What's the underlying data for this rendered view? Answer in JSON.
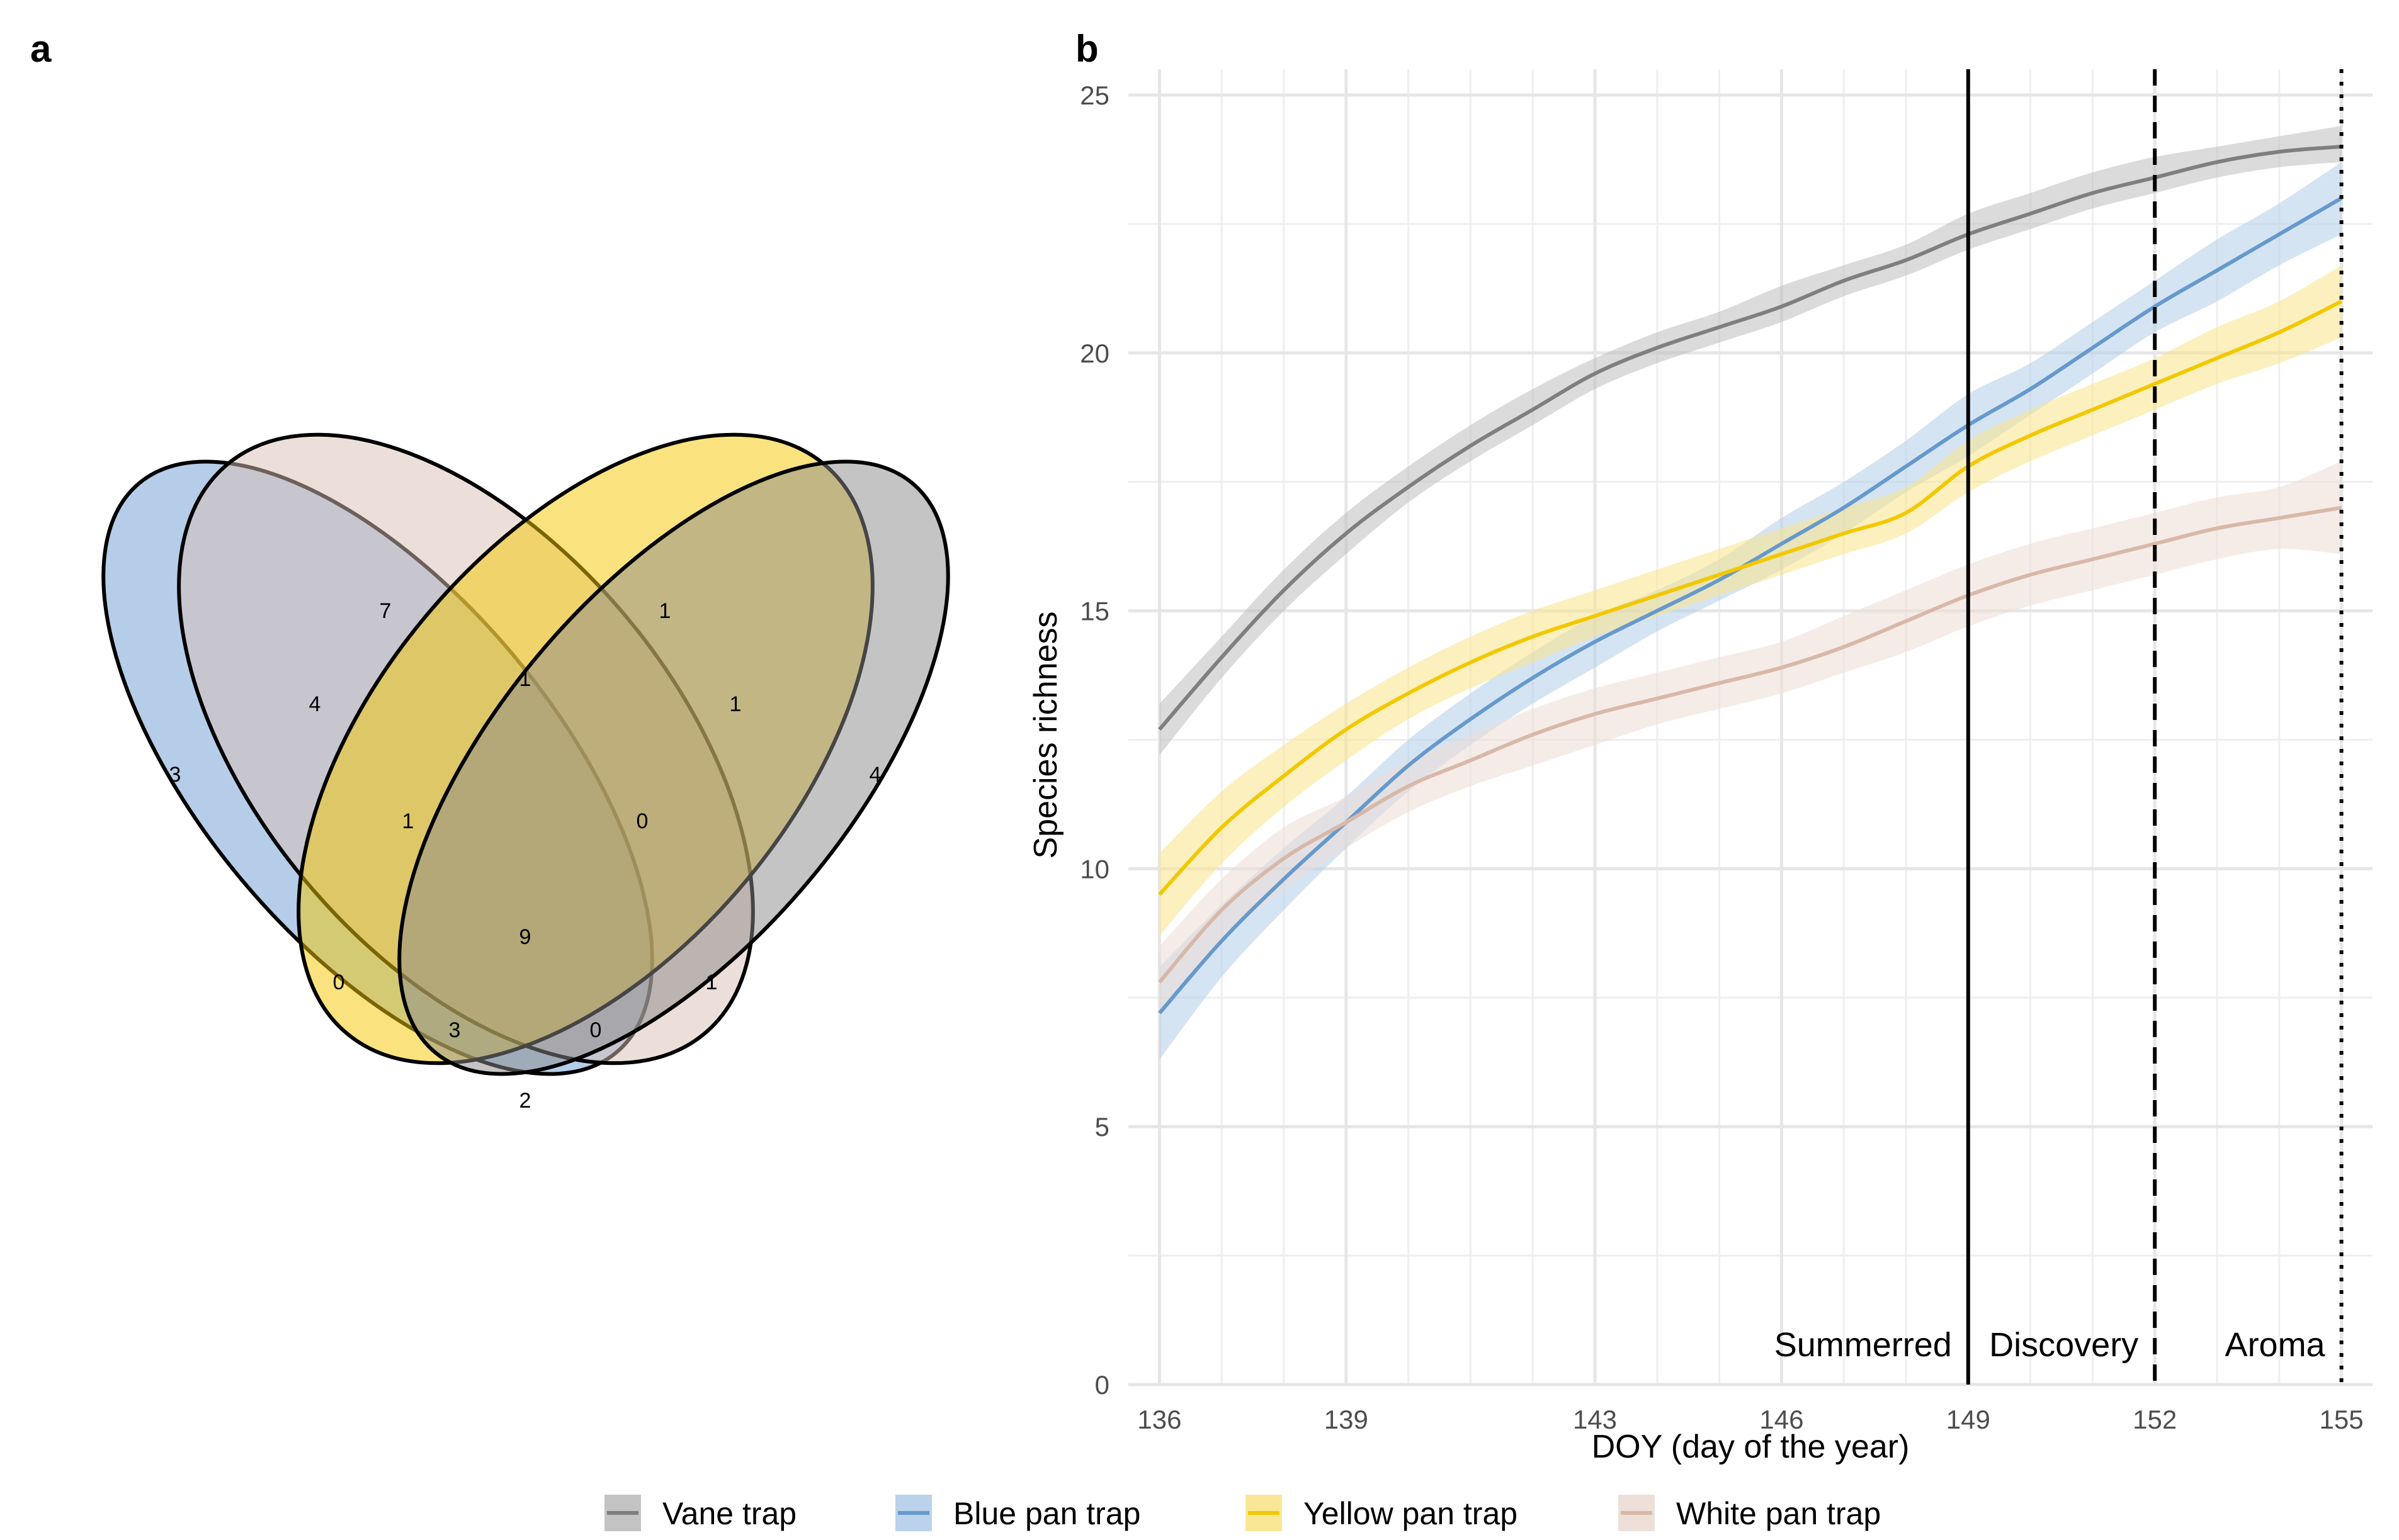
{
  "panels": {
    "a": "a",
    "b": "b"
  },
  "venn": {
    "sets": [
      {
        "name": "Blue pan trap",
        "color": "#6c9bd1"
      },
      {
        "name": "White pan trap",
        "color": "#d9bfb4"
      },
      {
        "name": "Yellow pan trap",
        "color": "#f5c800"
      },
      {
        "name": "Vane trap",
        "color": "#8a8a8a"
      }
    ],
    "counts": {
      "blue_only": "3",
      "white_only": "7",
      "yellow_only": "1",
      "vane_only": "4",
      "blue_white": "4",
      "white_yellow": "1",
      "yellow_vane": "1",
      "blue_white_yellow": "1",
      "white_yellow_vane": "0",
      "all_four": "9",
      "blue_yellow": "0",
      "white_vane": "1",
      "blue_yellow_vane": "3",
      "blue_white_vane": "0",
      "blue_vane": "2"
    }
  },
  "chart_data": {
    "type": "line",
    "xlabel": "DOY (day of the year)",
    "ylabel": "Species richness",
    "xlim": [
      135.5,
      155.5
    ],
    "ylim": [
      0,
      25.5
    ],
    "x_ticks": [
      136,
      139,
      143,
      146,
      149,
      152,
      155
    ],
    "y_ticks": [
      0,
      5,
      10,
      15,
      20,
      25
    ],
    "grid": true,
    "legend_position": "bottom",
    "x": [
      136,
      137,
      138,
      139,
      140,
      141,
      142,
      143,
      144,
      145,
      146,
      147,
      148,
      149,
      150,
      151,
      152,
      153,
      154,
      155
    ],
    "series": [
      {
        "name": "Vane trap",
        "color": "#7f7f7f",
        "band": "#bdbdbd",
        "values": [
          12.7,
          14.1,
          15.4,
          16.5,
          17.4,
          18.2,
          18.9,
          19.6,
          20.1,
          20.5,
          20.9,
          21.4,
          21.8,
          22.3,
          22.7,
          23.1,
          23.4,
          23.7,
          23.9,
          24.0
        ],
        "lower": [
          12.2,
          13.7,
          15.0,
          16.1,
          17.1,
          17.9,
          18.6,
          19.3,
          19.8,
          20.2,
          20.6,
          21.1,
          21.5,
          22.0,
          22.4,
          22.8,
          23.1,
          23.4,
          23.6,
          23.7
        ],
        "upper": [
          13.2,
          14.5,
          15.8,
          16.9,
          17.8,
          18.6,
          19.3,
          19.9,
          20.4,
          20.8,
          21.3,
          21.7,
          22.1,
          22.7,
          23.1,
          23.5,
          23.8,
          24.0,
          24.2,
          24.4
        ]
      },
      {
        "name": "Blue pan trap",
        "color": "#6699cc",
        "band": "#b3cde9",
        "values": [
          7.2,
          8.6,
          9.8,
          10.9,
          12.0,
          12.9,
          13.7,
          14.4,
          15.0,
          15.6,
          16.3,
          17.0,
          17.8,
          18.6,
          19.3,
          20.1,
          20.9,
          21.6,
          22.3,
          23.0
        ],
        "lower": [
          6.3,
          7.9,
          9.2,
          10.4,
          11.5,
          12.4,
          13.2,
          13.9,
          14.6,
          15.2,
          15.8,
          16.5,
          17.3,
          18.0,
          18.8,
          19.6,
          20.4,
          21.0,
          21.7,
          22.3
        ],
        "upper": [
          8.1,
          9.3,
          10.4,
          11.4,
          12.5,
          13.4,
          14.2,
          14.9,
          15.4,
          16.0,
          16.8,
          17.5,
          18.3,
          19.2,
          19.8,
          20.6,
          21.4,
          22.2,
          22.9,
          23.7
        ]
      },
      {
        "name": "Yellow pan trap",
        "color": "#f2c800",
        "band": "#f9e48a",
        "values": [
          9.5,
          10.8,
          11.8,
          12.7,
          13.4,
          14.0,
          14.5,
          14.9,
          15.3,
          15.7,
          16.1,
          16.5,
          16.9,
          17.8,
          18.4,
          18.9,
          19.4,
          19.9,
          20.4,
          21.0
        ],
        "lower": [
          8.7,
          10.1,
          11.2,
          12.1,
          12.9,
          13.5,
          14.0,
          14.5,
          14.9,
          15.3,
          15.7,
          16.1,
          16.5,
          17.3,
          17.9,
          18.4,
          18.9,
          19.4,
          19.8,
          20.3
        ],
        "upper": [
          10.3,
          11.5,
          12.4,
          13.2,
          13.9,
          14.5,
          15.0,
          15.4,
          15.8,
          16.2,
          16.6,
          17.0,
          17.4,
          18.3,
          18.9,
          19.4,
          19.9,
          20.5,
          21.0,
          21.7
        ]
      },
      {
        "name": "White pan trap",
        "color": "#d8b8a8",
        "band": "#ecdcd5",
        "values": [
          7.8,
          9.2,
          10.2,
          10.9,
          11.6,
          12.1,
          12.6,
          13.0,
          13.3,
          13.6,
          13.9,
          14.3,
          14.8,
          15.3,
          15.7,
          16.0,
          16.3,
          16.6,
          16.8,
          17.0
        ],
        "lower": [
          7.1,
          8.6,
          9.6,
          10.4,
          11.1,
          11.6,
          12.0,
          12.4,
          12.8,
          13.1,
          13.4,
          13.8,
          14.2,
          14.7,
          15.1,
          15.4,
          15.7,
          16.0,
          16.2,
          16.1
        ],
        "upper": [
          8.5,
          9.8,
          10.8,
          11.4,
          12.1,
          12.6,
          13.1,
          13.5,
          13.8,
          14.1,
          14.4,
          14.9,
          15.4,
          15.9,
          16.3,
          16.6,
          16.9,
          17.2,
          17.4,
          17.9
        ]
      }
    ],
    "vlines": [
      {
        "x": 149,
        "style": "solid",
        "label": "Summerred"
      },
      {
        "x": 152,
        "style": "dashed",
        "label": "Discovery"
      },
      {
        "x": 155,
        "style": "dotted",
        "label": "Aroma"
      }
    ]
  }
}
